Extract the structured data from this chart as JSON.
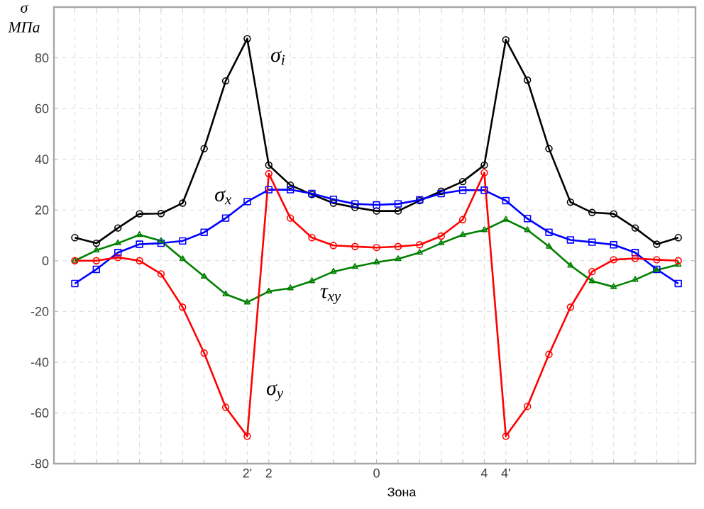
{
  "chart_data": {
    "type": "line",
    "xlabel": "Зона",
    "ylabel": "σ МПа",
    "categories": [
      null,
      null,
      null,
      null,
      null,
      null,
      null,
      null,
      "2'",
      "2",
      null,
      null,
      null,
      null,
      "0",
      null,
      null,
      null,
      null,
      "4",
      "4'",
      null,
      null,
      null,
      null,
      null,
      null,
      null,
      null
    ],
    "ylim": [
      -80,
      100
    ],
    "yticks": [
      -80,
      -60,
      -40,
      -20,
      0,
      20,
      40,
      60,
      80
    ],
    "grid": true,
    "line_style": "solid",
    "series": [
      {
        "name": "σ$_{i}$",
        "color": "#000000",
        "marker": "circle",
        "values": [
          9.1,
          6.9,
          12.9,
          18.5,
          18.6,
          22.7,
          44.2,
          70.9,
          87.5,
          37.7,
          29.8,
          26.1,
          22.7,
          21,
          19.6,
          19.6,
          23.7,
          27.4,
          31.2,
          37.7,
          87.1,
          71.2,
          44.2,
          23.1,
          19,
          18.5,
          12.9,
          6.5,
          9.1
        ]
      },
      {
        "name": "σ$_{x}$",
        "color": "#0000ff",
        "marker": "square",
        "values": [
          -9,
          -3.4,
          3.2,
          6.5,
          6.9,
          7.8,
          11.2,
          16.8,
          23.3,
          28,
          28,
          26.5,
          24.2,
          22.4,
          22,
          22.4,
          24,
          26.5,
          27.8,
          27.8,
          23.7,
          16.6,
          11.2,
          8.2,
          7.3,
          6.3,
          3.2,
          -3.4,
          -9
        ]
      },
      {
        "name": "τ$_{xy}$",
        "color": "#008000",
        "marker": "triangle",
        "values": [
          0,
          4.1,
          6.9,
          10.2,
          7.8,
          0.7,
          -6.2,
          -13.2,
          -16.4,
          -12.1,
          -10.8,
          -8,
          -4.3,
          -2.4,
          -0.6,
          0.7,
          3.2,
          6.9,
          10.2,
          12.1,
          16.2,
          12.1,
          5.6,
          -1.9,
          -8,
          -10.3,
          -7.5,
          -3.7,
          -1.5
        ]
      },
      {
        "name": "σ$_{y}$",
        "color": "#ff0000",
        "marker": "circle",
        "values": [
          0,
          0,
          1.3,
          0,
          -5.2,
          -18.3,
          -36.4,
          -57.8,
          -69.2,
          34.3,
          16.8,
          9.1,
          6,
          5.6,
          5.2,
          5.6,
          6.3,
          9.7,
          16.2,
          34.7,
          -69.2,
          -57.4,
          -36.9,
          -18.3,
          -4.3,
          0.4,
          0.9,
          0.4,
          0
        ]
      }
    ]
  }
}
